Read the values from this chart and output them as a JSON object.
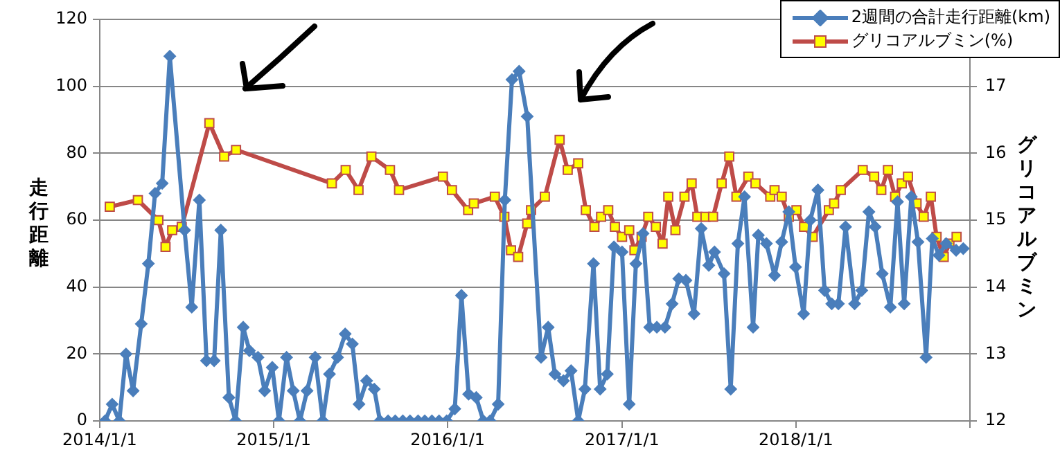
{
  "chart_data": {
    "type": "line",
    "ylabel": "走行距離",
    "y2label": "グリコアルブミン",
    "xlim": [
      "2014-01-01",
      "2019-01-01"
    ],
    "xticks": [
      {
        "value": "2014-01-01",
        "label": "2014/1/1"
      },
      {
        "value": "2015-01-01",
        "label": "2015/1/1"
      },
      {
        "value": "2016-01-01",
        "label": "2016/1/1"
      },
      {
        "value": "2017-01-01",
        "label": "2017/1/1"
      },
      {
        "value": "2018-01-01",
        "label": "2018/1/1"
      },
      {
        "value": "2019-01-01",
        "label": null
      }
    ],
    "ylim": [
      0,
      120
    ],
    "yticks": [
      0,
      20,
      40,
      60,
      80,
      100,
      120
    ],
    "y2lim": [
      12,
      18
    ],
    "y2ticks": [
      12,
      13,
      14,
      15,
      16,
      17
    ],
    "grid": "y",
    "legend": "top right",
    "series": [
      {
        "name": "2週間の合計走行距離(km)",
        "color": "#4a7ebb",
        "marker": "diamond",
        "x": [
          "2014-01-12",
          "2014-01-27",
          "2014-02-11",
          "2014-02-25",
          "2014-03-12",
          "2014-03-29",
          "2014-04-13",
          "2014-04-27",
          "2014-05-12",
          "2014-05-28",
          "2014-06-28",
          "2014-07-13",
          "2014-07-29",
          "2014-08-13",
          "2014-08-29",
          "2014-09-12",
          "2014-09-29",
          "2014-10-13",
          "2014-10-29",
          "2014-11-11",
          "2014-11-29",
          "2014-12-13",
          "2014-12-29",
          "2015-01-12",
          "2015-01-28",
          "2015-02-11",
          "2015-02-25",
          "2015-03-12",
          "2015-03-29",
          "2015-04-14",
          "2015-04-28",
          "2015-05-15",
          "2015-05-31",
          "2015-06-15",
          "2015-06-29",
          "2015-07-15",
          "2015-07-31",
          "2015-08-12",
          "2015-08-29",
          "2015-09-13",
          "2015-09-29",
          "2015-10-14",
          "2015-10-31",
          "2015-11-14",
          "2015-11-29",
          "2015-12-14",
          "2015-12-30",
          "2016-01-16",
          "2016-01-30",
          "2016-02-14",
          "2016-03-01",
          "2016-03-16",
          "2016-03-30",
          "2016-04-16",
          "2016-04-30",
          "2016-05-15",
          "2016-05-30",
          "2016-06-16",
          "2016-07-15",
          "2016-07-30",
          "2016-08-13",
          "2016-08-31",
          "2016-09-16",
          "2016-10-01",
          "2016-10-15",
          "2016-11-02",
          "2016-11-16",
          "2016-12-01",
          "2016-12-15",
          "2017-01-01",
          "2017-01-16",
          "2017-01-30",
          "2017-02-14",
          "2017-02-28",
          "2017-03-15",
          "2017-04-01",
          "2017-04-16",
          "2017-04-30",
          "2017-05-15",
          "2017-06-01",
          "2017-06-16",
          "2017-07-02",
          "2017-07-14",
          "2017-08-03",
          "2017-08-17",
          "2017-09-01",
          "2017-09-15",
          "2017-10-03",
          "2017-10-14",
          "2017-10-31",
          "2017-11-17",
          "2017-12-02",
          "2017-12-17",
          "2017-12-31",
          "2018-01-17",
          "2018-01-31",
          "2018-02-16",
          "2018-03-02",
          "2018-03-17",
          "2018-03-31",
          "2018-04-15",
          "2018-05-04",
          "2018-05-19",
          "2018-06-03",
          "2018-06-16",
          "2018-07-01",
          "2018-07-18",
          "2018-08-02",
          "2018-08-16",
          "2018-08-31",
          "2018-09-14",
          "2018-10-01",
          "2018-10-14",
          "2018-10-28",
          "2018-11-12",
          "2018-12-03",
          "2018-12-18"
        ],
        "values": [
          0,
          5,
          0,
          20,
          9,
          29,
          47,
          68,
          71,
          109,
          57,
          34,
          66,
          18,
          18,
          57,
          7,
          0,
          28,
          21,
          19,
          9,
          16,
          0,
          19,
          9,
          0,
          9,
          19,
          0,
          14,
          19,
          26,
          23,
          5,
          12,
          9.5,
          0,
          0,
          0,
          0,
          0,
          0,
          0,
          0,
          0,
          0,
          3.6,
          37.5,
          8,
          7,
          0,
          0,
          5,
          66,
          102,
          104.5,
          91,
          19,
          28,
          14,
          12,
          15,
          0,
          9.5,
          47,
          9.5,
          14,
          52,
          50.5,
          5,
          47,
          56,
          28,
          28,
          28,
          35,
          42.5,
          42,
          32,
          57.5,
          46.5,
          50.5,
          44,
          9.5,
          53,
          67,
          28,
          55.5,
          53,
          43.5,
          53.5,
          62.5,
          46,
          32,
          60,
          69,
          39,
          35,
          35,
          58,
          35,
          39,
          62.5,
          58,
          44,
          34,
          65.5,
          35,
          67,
          53.5,
          19,
          54.5,
          49.5,
          53,
          51,
          51.5
        ]
      },
      {
        "name": "グリコアルブミン(%)",
        "color": "#be4b48",
        "marker": "square",
        "axis": "y2",
        "x": [
          "2014-01-22",
          "2014-03-22",
          "2014-05-04",
          "2014-05-19",
          "2014-06-02",
          "2014-06-22",
          "2014-08-19",
          "2014-09-19",
          "2014-10-14",
          "2015-05-03",
          "2015-06-01",
          "2015-06-28",
          "2015-07-25",
          "2015-09-02",
          "2015-09-21",
          "2015-12-22",
          "2016-01-10",
          "2016-02-13",
          "2016-02-25",
          "2016-04-09",
          "2016-04-29",
          "2016-05-13",
          "2016-05-28",
          "2016-06-16",
          "2016-06-24",
          "2016-07-23",
          "2016-08-23",
          "2016-09-09",
          "2016-10-01",
          "2016-10-17",
          "2016-11-04",
          "2016-11-18",
          "2016-12-03",
          "2016-12-17",
          "2017-01-01",
          "2017-01-16",
          "2017-01-27",
          "2017-02-11",
          "2017-02-25",
          "2017-03-13",
          "2017-03-27",
          "2017-04-08",
          "2017-04-23",
          "2017-05-12",
          "2017-05-27",
          "2017-06-08",
          "2017-06-25",
          "2017-07-11",
          "2017-07-29",
          "2017-08-14",
          "2017-08-29",
          "2017-09-23",
          "2017-10-08",
          "2017-11-08",
          "2017-11-17",
          "2017-12-02",
          "2017-12-17",
          "2018-01-02",
          "2018-01-18",
          "2018-02-05",
          "2018-03-11",
          "2018-03-22",
          "2018-04-05",
          "2018-05-21",
          "2018-06-14",
          "2018-06-29",
          "2018-07-13",
          "2018-07-28",
          "2018-08-11",
          "2018-08-24",
          "2018-09-11",
          "2018-09-26",
          "2018-10-11",
          "2018-10-23",
          "2018-11-07",
          "2018-11-19",
          "2018-12-04"
        ],
        "values": [
          15.2,
          15.3,
          15.0,
          14.6,
          14.85,
          14.9,
          16.45,
          15.95,
          16.05,
          15.55,
          15.75,
          15.45,
          15.95,
          15.75,
          15.45,
          15.65,
          15.45,
          15.15,
          15.25,
          15.35,
          15.05,
          14.55,
          14.45,
          14.95,
          15.15,
          15.35,
          16.2,
          15.75,
          15.85,
          15.15,
          14.9,
          15.05,
          15.15,
          14.9,
          14.75,
          14.85,
          14.55,
          14.75,
          15.05,
          14.9,
          14.65,
          15.35,
          14.85,
          15.35,
          15.55,
          15.05,
          15.05,
          15.05,
          15.55,
          15.95,
          15.35,
          15.65,
          15.55,
          15.35,
          15.45,
          15.35,
          15.05,
          15.15,
          14.9,
          14.75,
          15.15,
          15.25,
          15.45,
          15.75,
          15.65,
          15.45,
          15.75,
          15.35,
          15.55,
          15.65,
          15.25,
          15.05,
          15.35,
          14.75,
          14.45,
          14.65,
          14.75
        ]
      }
    ]
  }
}
